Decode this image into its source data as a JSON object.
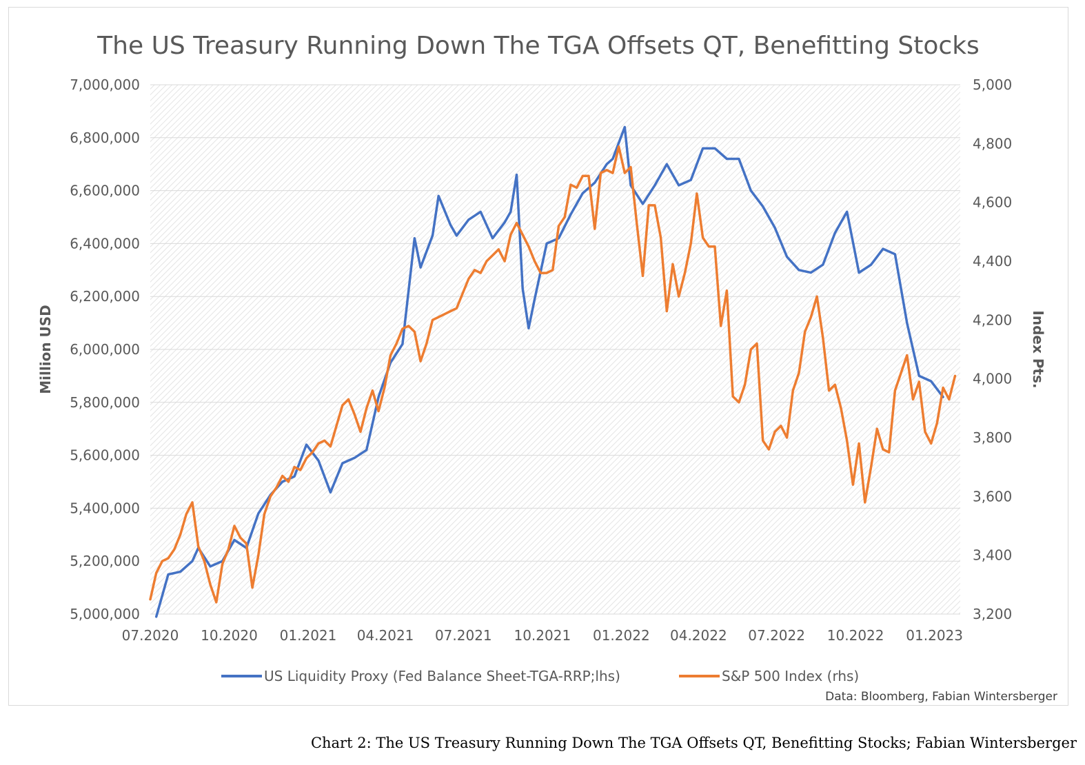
{
  "chart_data": {
    "type": "line",
    "title": "The US Treasury Running Down The TGA Offsets QT, Benefitting Stocks",
    "ylabel_left": "Million USD",
    "ylabel_right": "Index Pts.",
    "ylim_left": [
      5000000,
      7000000
    ],
    "ylim_right": [
      3200,
      5000
    ],
    "xlim": [
      "2020-07-01",
      "2023-01-31"
    ],
    "x_ticks": [
      {
        "date": "2020-07-01",
        "label": "07.2020"
      },
      {
        "date": "2020-10-01",
        "label": "10.2020"
      },
      {
        "date": "2021-01-01",
        "label": "01.2021"
      },
      {
        "date": "2021-04-01",
        "label": "04.2021"
      },
      {
        "date": "2021-07-01",
        "label": "07.2021"
      },
      {
        "date": "2021-10-01",
        "label": "10.2021"
      },
      {
        "date": "2022-01-01",
        "label": "01.2022"
      },
      {
        "date": "2022-04-01",
        "label": "04.2022"
      },
      {
        "date": "2022-07-01",
        "label": "07.2022"
      },
      {
        "date": "2022-10-01",
        "label": "10.2022"
      },
      {
        "date": "2023-01-01",
        "label": "01.2023"
      }
    ],
    "y_ticks_left": [
      "5,000,000",
      "5,200,000",
      "5,400,000",
      "5,600,000",
      "5,800,000",
      "6,000,000",
      "6,200,000",
      "6,400,000",
      "6,600,000",
      "6,800,000",
      "7,000,000"
    ],
    "y_ticks_right": [
      "3,200",
      "3,400",
      "3,600",
      "3,800",
      "4,000",
      "4,200",
      "4,400",
      "4,600",
      "4,800",
      "5,000"
    ],
    "grid": true,
    "legend_position": "bottom",
    "series": [
      {
        "name": "US Liquidity Proxy (Fed Balance Sheet-TGA-RRP;lhs)",
        "axis": "left",
        "color": "#4472c4",
        "points": [
          [
            "2020-07-08",
            4990000
          ],
          [
            "2020-07-22",
            5150000
          ],
          [
            "2020-08-05",
            5160000
          ],
          [
            "2020-08-19",
            5200000
          ],
          [
            "2020-08-26",
            5250000
          ],
          [
            "2020-09-09",
            5180000
          ],
          [
            "2020-09-23",
            5200000
          ],
          [
            "2020-10-07",
            5280000
          ],
          [
            "2020-10-21",
            5250000
          ],
          [
            "2020-11-04",
            5380000
          ],
          [
            "2020-11-18",
            5450000
          ],
          [
            "2020-12-02",
            5500000
          ],
          [
            "2020-12-16",
            5520000
          ],
          [
            "2020-12-30",
            5640000
          ],
          [
            "2021-01-13",
            5580000
          ],
          [
            "2021-01-27",
            5460000
          ],
          [
            "2021-02-10",
            5570000
          ],
          [
            "2021-02-24",
            5590000
          ],
          [
            "2021-03-10",
            5620000
          ],
          [
            "2021-03-24",
            5820000
          ],
          [
            "2021-04-07",
            5950000
          ],
          [
            "2021-04-21",
            6020000
          ],
          [
            "2021-05-05",
            6420000
          ],
          [
            "2021-05-12",
            6310000
          ],
          [
            "2021-05-26",
            6430000
          ],
          [
            "2021-06-02",
            6580000
          ],
          [
            "2021-06-16",
            6470000
          ],
          [
            "2021-06-23",
            6430000
          ],
          [
            "2021-07-07",
            6490000
          ],
          [
            "2021-07-21",
            6520000
          ],
          [
            "2021-08-04",
            6420000
          ],
          [
            "2021-08-18",
            6480000
          ],
          [
            "2021-08-25",
            6520000
          ],
          [
            "2021-09-01",
            6660000
          ],
          [
            "2021-09-08",
            6230000
          ],
          [
            "2021-09-15",
            6080000
          ],
          [
            "2021-09-22",
            6190000
          ],
          [
            "2021-10-06",
            6400000
          ],
          [
            "2021-10-20",
            6420000
          ],
          [
            "2021-11-03",
            6510000
          ],
          [
            "2021-11-17",
            6590000
          ],
          [
            "2021-12-01",
            6630000
          ],
          [
            "2021-12-15",
            6700000
          ],
          [
            "2021-12-22",
            6720000
          ],
          [
            "2022-01-05",
            6840000
          ],
          [
            "2022-01-12",
            6620000
          ],
          [
            "2022-01-26",
            6550000
          ],
          [
            "2022-02-09",
            6620000
          ],
          [
            "2022-02-23",
            6700000
          ],
          [
            "2022-03-09",
            6620000
          ],
          [
            "2022-03-23",
            6640000
          ],
          [
            "2022-04-06",
            6760000
          ],
          [
            "2022-04-20",
            6760000
          ],
          [
            "2022-05-04",
            6720000
          ],
          [
            "2022-05-18",
            6720000
          ],
          [
            "2022-06-01",
            6600000
          ],
          [
            "2022-06-15",
            6540000
          ],
          [
            "2022-06-29",
            6460000
          ],
          [
            "2022-07-13",
            6350000
          ],
          [
            "2022-07-27",
            6300000
          ],
          [
            "2022-08-10",
            6290000
          ],
          [
            "2022-08-24",
            6320000
          ],
          [
            "2022-09-07",
            6440000
          ],
          [
            "2022-09-21",
            6520000
          ],
          [
            "2022-10-05",
            6290000
          ],
          [
            "2022-10-19",
            6320000
          ],
          [
            "2022-11-02",
            6380000
          ],
          [
            "2022-11-16",
            6360000
          ],
          [
            "2022-11-30",
            6100000
          ],
          [
            "2022-12-14",
            5900000
          ],
          [
            "2022-12-28",
            5880000
          ],
          [
            "2023-01-11",
            5820000
          ]
        ]
      },
      {
        "name": "S&P 500 Index (rhs)",
        "axis": "right",
        "color": "#ed7d31",
        "points": [
          [
            "2020-07-01",
            3250
          ],
          [
            "2020-07-08",
            3340
          ],
          [
            "2020-07-15",
            3380
          ],
          [
            "2020-07-22",
            3390
          ],
          [
            "2020-07-29",
            3420
          ],
          [
            "2020-08-05",
            3470
          ],
          [
            "2020-08-12",
            3540
          ],
          [
            "2020-08-19",
            3580
          ],
          [
            "2020-08-26",
            3430
          ],
          [
            "2020-09-02",
            3380
          ],
          [
            "2020-09-09",
            3300
          ],
          [
            "2020-09-16",
            3240
          ],
          [
            "2020-09-23",
            3370
          ],
          [
            "2020-09-30",
            3420
          ],
          [
            "2020-10-07",
            3500
          ],
          [
            "2020-10-14",
            3460
          ],
          [
            "2020-10-21",
            3440
          ],
          [
            "2020-10-28",
            3290
          ],
          [
            "2020-11-04",
            3400
          ],
          [
            "2020-11-11",
            3540
          ],
          [
            "2020-11-18",
            3600
          ],
          [
            "2020-11-25",
            3630
          ],
          [
            "2020-12-02",
            3670
          ],
          [
            "2020-12-09",
            3650
          ],
          [
            "2020-12-16",
            3700
          ],
          [
            "2020-12-23",
            3690
          ],
          [
            "2020-12-30",
            3730
          ],
          [
            "2021-01-06",
            3750
          ],
          [
            "2021-01-13",
            3780
          ],
          [
            "2021-01-20",
            3790
          ],
          [
            "2021-01-27",
            3770
          ],
          [
            "2021-02-03",
            3840
          ],
          [
            "2021-02-10",
            3910
          ],
          [
            "2021-02-17",
            3930
          ],
          [
            "2021-02-24",
            3880
          ],
          [
            "2021-03-03",
            3820
          ],
          [
            "2021-03-10",
            3900
          ],
          [
            "2021-03-17",
            3960
          ],
          [
            "2021-03-24",
            3890
          ],
          [
            "2021-03-31",
            3970
          ],
          [
            "2021-04-07",
            4080
          ],
          [
            "2021-04-14",
            4120
          ],
          [
            "2021-04-21",
            4170
          ],
          [
            "2021-04-28",
            4180
          ],
          [
            "2021-05-05",
            4160
          ],
          [
            "2021-05-12",
            4060
          ],
          [
            "2021-05-19",
            4120
          ],
          [
            "2021-05-26",
            4200
          ],
          [
            "2021-06-02",
            4210
          ],
          [
            "2021-06-09",
            4220
          ],
          [
            "2021-06-16",
            4230
          ],
          [
            "2021-06-23",
            4240
          ],
          [
            "2021-06-30",
            4290
          ],
          [
            "2021-07-07",
            4340
          ],
          [
            "2021-07-14",
            4370
          ],
          [
            "2021-07-21",
            4360
          ],
          [
            "2021-07-28",
            4400
          ],
          [
            "2021-08-04",
            4420
          ],
          [
            "2021-08-11",
            4440
          ],
          [
            "2021-08-18",
            4400
          ],
          [
            "2021-08-25",
            4490
          ],
          [
            "2021-09-01",
            4530
          ],
          [
            "2021-09-08",
            4490
          ],
          [
            "2021-09-15",
            4450
          ],
          [
            "2021-09-22",
            4400
          ],
          [
            "2021-09-29",
            4360
          ],
          [
            "2021-10-06",
            4360
          ],
          [
            "2021-10-13",
            4370
          ],
          [
            "2021-10-20",
            4520
          ],
          [
            "2021-10-27",
            4550
          ],
          [
            "2021-11-03",
            4660
          ],
          [
            "2021-11-10",
            4650
          ],
          [
            "2021-11-17",
            4690
          ],
          [
            "2021-11-24",
            4690
          ],
          [
            "2021-12-01",
            4510
          ],
          [
            "2021-12-08",
            4700
          ],
          [
            "2021-12-15",
            4710
          ],
          [
            "2021-12-22",
            4700
          ],
          [
            "2021-12-29",
            4790
          ],
          [
            "2022-01-05",
            4700
          ],
          [
            "2022-01-12",
            4720
          ],
          [
            "2022-01-19",
            4530
          ],
          [
            "2022-01-26",
            4350
          ],
          [
            "2022-02-02",
            4590
          ],
          [
            "2022-02-09",
            4590
          ],
          [
            "2022-02-16",
            4480
          ],
          [
            "2022-02-23",
            4230
          ],
          [
            "2022-03-02",
            4390
          ],
          [
            "2022-03-09",
            4280
          ],
          [
            "2022-03-16",
            4360
          ],
          [
            "2022-03-23",
            4460
          ],
          [
            "2022-03-30",
            4630
          ],
          [
            "2022-04-06",
            4480
          ],
          [
            "2022-04-13",
            4450
          ],
          [
            "2022-04-20",
            4450
          ],
          [
            "2022-04-27",
            4180
          ],
          [
            "2022-05-04",
            4300
          ],
          [
            "2022-05-11",
            3940
          ],
          [
            "2022-05-18",
            3920
          ],
          [
            "2022-05-25",
            3980
          ],
          [
            "2022-06-01",
            4100
          ],
          [
            "2022-06-08",
            4120
          ],
          [
            "2022-06-15",
            3790
          ],
          [
            "2022-06-22",
            3760
          ],
          [
            "2022-06-29",
            3820
          ],
          [
            "2022-07-06",
            3840
          ],
          [
            "2022-07-13",
            3800
          ],
          [
            "2022-07-20",
            3960
          ],
          [
            "2022-07-27",
            4020
          ],
          [
            "2022-08-03",
            4160
          ],
          [
            "2022-08-10",
            4210
          ],
          [
            "2022-08-17",
            4280
          ],
          [
            "2022-08-24",
            4140
          ],
          [
            "2022-08-31",
            3960
          ],
          [
            "2022-09-07",
            3980
          ],
          [
            "2022-09-14",
            3900
          ],
          [
            "2022-09-21",
            3790
          ],
          [
            "2022-09-28",
            3640
          ],
          [
            "2022-10-05",
            3780
          ],
          [
            "2022-10-12",
            3580
          ],
          [
            "2022-10-19",
            3700
          ],
          [
            "2022-10-26",
            3830
          ],
          [
            "2022-11-02",
            3760
          ],
          [
            "2022-11-09",
            3750
          ],
          [
            "2022-11-16",
            3960
          ],
          [
            "2022-11-23",
            4020
          ],
          [
            "2022-11-30",
            4080
          ],
          [
            "2022-12-07",
            3930
          ],
          [
            "2022-12-14",
            3990
          ],
          [
            "2022-12-21",
            3820
          ],
          [
            "2022-12-28",
            3780
          ],
          [
            "2023-01-04",
            3850
          ],
          [
            "2023-01-11",
            3970
          ],
          [
            "2023-01-18",
            3930
          ],
          [
            "2023-01-25",
            4010
          ]
        ]
      }
    ],
    "source": "Data: Bloomberg, Fabian Wintersberger"
  },
  "caption": "Chart 2: The US Treasury Running Down The TGA Offsets QT, Benefitting Stocks; Fabian Wintersberger"
}
